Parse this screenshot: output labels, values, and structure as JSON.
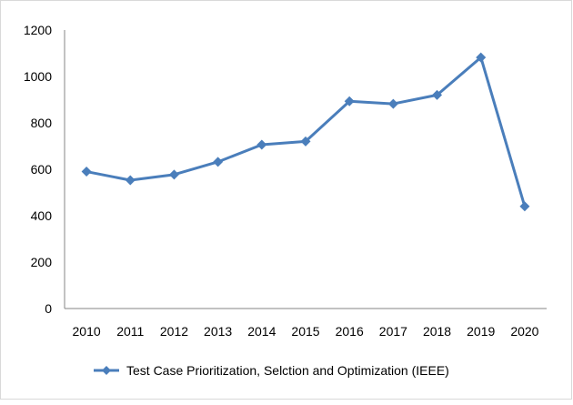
{
  "chart_data": {
    "type": "line",
    "categories": [
      "2010",
      "2011",
      "2012",
      "2013",
      "2014",
      "2015",
      "2016",
      "2017",
      "2018",
      "2019",
      "2020"
    ],
    "series": [
      {
        "name": "Test Case Prioritization, Selction and Optimization (IEEE)",
        "values": [
          590,
          553,
          577,
          632,
          706,
          720,
          893,
          882,
          920,
          1082,
          440
        ],
        "color": "#4a7ebb",
        "marker": "diamond"
      }
    ],
    "yticks": [
      "0",
      "200",
      "400",
      "600",
      "800",
      "1000",
      "1200"
    ],
    "ylim": [
      0,
      1200
    ],
    "grid": false,
    "legend": "bottom"
  }
}
